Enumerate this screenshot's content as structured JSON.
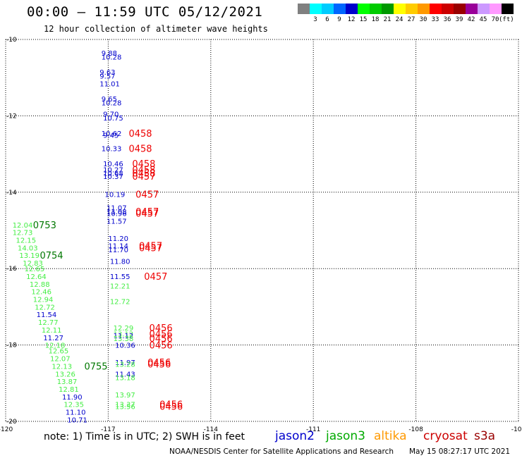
{
  "header": {
    "title": "00:00 – 11:59 UTC 05/12/2021",
    "subtitle": "12 hour collection of altimeter wave heights"
  },
  "colorbar": {
    "unit_label": "(ft)",
    "entries": [
      {
        "label": "",
        "color": "#808080"
      },
      {
        "label": "3",
        "color": "#00ffff"
      },
      {
        "label": "6",
        "color": "#00ccff"
      },
      {
        "label": "9",
        "color": "#0066ff"
      },
      {
        "label": "12",
        "color": "#0000cc"
      },
      {
        "label": "15",
        "color": "#00ff00"
      },
      {
        "label": "18",
        "color": "#00cc00"
      },
      {
        "label": "21",
        "color": "#009900"
      },
      {
        "label": "24",
        "color": "#ffff00"
      },
      {
        "label": "27",
        "color": "#ffcc00"
      },
      {
        "label": "30",
        "color": "#ff9900"
      },
      {
        "label": "33",
        "color": "#ff0000"
      },
      {
        "label": "36",
        "color": "#cc0000"
      },
      {
        "label": "39",
        "color": "#990000"
      },
      {
        "label": "42",
        "color": "#990099"
      },
      {
        "label": "45",
        "color": "#cc99ff"
      },
      {
        "label": "70",
        "color": "#ff99ff"
      },
      {
        "label": "",
        "color": "#000000"
      }
    ]
  },
  "footer": {
    "note": "note: 1) Time is in UTC; 2) SWH is in feet",
    "satellites": [
      {
        "name": "jason2",
        "color": "#0000cc"
      },
      {
        "name": "jason3",
        "color": "#00aa00"
      },
      {
        "name": "altika",
        "color": "#ff9900"
      },
      {
        "name": "cryosat",
        "color": "#cc0000"
      },
      {
        "name": "s3a",
        "color": "#990000"
      }
    ],
    "credit": "NOAA/NESDIS Center for Satellite Applications and Research",
    "timestamp": "May 15 08:27:17 UTC 2021"
  },
  "chart_data": {
    "type": "scatter",
    "xlim": [
      -120,
      -105
    ],
    "ylim": [
      -20,
      -10
    ],
    "x_ticks": [
      "-120",
      "-117",
      "-114",
      "-111",
      "-108",
      "-105"
    ],
    "y_ticks": [
      "-10",
      "-12",
      "-14",
      "-16",
      "-18",
      "-20"
    ],
    "grid": true,
    "colors": {
      "jason2": "#0000cc",
      "jason3": "#44ee44",
      "time_red": "#ee0000",
      "time_green": "#007700"
    },
    "points": [
      {
        "x": -117.2,
        "y": -10.35,
        "v": "9.88",
        "c": "jason2"
      },
      {
        "x": -117.2,
        "y": -10.45,
        "v": "10.28",
        "c": "jason2"
      },
      {
        "x": -117.25,
        "y": -10.85,
        "v": "9.63",
        "c": "jason2"
      },
      {
        "x": -117.25,
        "y": -10.95,
        "v": "9.57",
        "c": "jason2"
      },
      {
        "x": -117.25,
        "y": -11.15,
        "v": "11.01",
        "c": "jason2"
      },
      {
        "x": -117.2,
        "y": -11.55,
        "v": "9.65",
        "c": "jason2"
      },
      {
        "x": -117.2,
        "y": -11.65,
        "v": "10.28",
        "c": "jason2"
      },
      {
        "x": -117.15,
        "y": -11.95,
        "v": "9.70",
        "c": "jason2"
      },
      {
        "x": -117.15,
        "y": -12.05,
        "v": "10.75",
        "c": "jason2"
      },
      {
        "x": -117.2,
        "y": -12.45,
        "v": "10.62",
        "c": "jason2"
      },
      {
        "x": -117.15,
        "y": -12.5,
        "v": "9.45",
        "c": "jason2"
      },
      {
        "x": -117.2,
        "y": -12.85,
        "v": "10.33",
        "c": "jason2"
      },
      {
        "x": -117.15,
        "y": -13.25,
        "v": "10.46",
        "c": "jason2"
      },
      {
        "x": -117.15,
        "y": -13.4,
        "v": "10.27",
        "c": "jason2"
      },
      {
        "x": -117.15,
        "y": -13.5,
        "v": "10.68",
        "c": "jason2"
      },
      {
        "x": -117.15,
        "y": -13.58,
        "v": "10.37",
        "c": "jason2"
      },
      {
        "x": -117.1,
        "y": -14.05,
        "v": "10.19",
        "c": "jason2"
      },
      {
        "x": -117.05,
        "y": -14.4,
        "v": "11.07",
        "c": "jason2"
      },
      {
        "x": -117.05,
        "y": -14.5,
        "v": "11.08",
        "c": "jason2"
      },
      {
        "x": -117.05,
        "y": -14.55,
        "v": "10.96",
        "c": "jason2"
      },
      {
        "x": -117.05,
        "y": -14.75,
        "v": "11.57",
        "c": "jason2"
      },
      {
        "x": -117.0,
        "y": -15.2,
        "v": "11.20",
        "c": "jason2"
      },
      {
        "x": -117.0,
        "y": -15.4,
        "v": "11.14",
        "c": "jason2"
      },
      {
        "x": -117.0,
        "y": -15.5,
        "v": "11.70",
        "c": "jason2"
      },
      {
        "x": -116.95,
        "y": -15.8,
        "v": "11.80",
        "c": "jason2"
      },
      {
        "x": -116.95,
        "y": -16.2,
        "v": "11.55",
        "c": "jason2"
      },
      {
        "x": -116.95,
        "y": -16.45,
        "v": "12.21",
        "c": "jason3"
      },
      {
        "x": -116.95,
        "y": -16.85,
        "v": "12.72",
        "c": "jason3"
      },
      {
        "x": -116.85,
        "y": -17.55,
        "v": "12.29",
        "c": "jason3"
      },
      {
        "x": -116.85,
        "y": -17.7,
        "v": "13.12",
        "c": "jason3"
      },
      {
        "x": -116.85,
        "y": -17.75,
        "v": "11.12",
        "c": "jason2"
      },
      {
        "x": -116.85,
        "y": -17.82,
        "v": "13.38",
        "c": "jason3"
      },
      {
        "x": -116.8,
        "y": -18.0,
        "v": "10.36",
        "c": "jason2"
      },
      {
        "x": -116.8,
        "y": -18.45,
        "v": "11.97",
        "c": "jason2"
      },
      {
        "x": -116.8,
        "y": -18.5,
        "v": "13.28",
        "c": "jason3"
      },
      {
        "x": -116.8,
        "y": -18.75,
        "v": "11.43",
        "c": "jason2"
      },
      {
        "x": -116.8,
        "y": -18.85,
        "v": "13.18",
        "c": "jason3"
      },
      {
        "x": -116.8,
        "y": -19.3,
        "v": "13.97",
        "c": "jason3"
      },
      {
        "x": -116.8,
        "y": -19.55,
        "v": "13.37",
        "c": "jason3"
      },
      {
        "x": -116.8,
        "y": -19.6,
        "v": "13.56",
        "c": "jason3"
      },
      {
        "x": -119.8,
        "y": -14.85,
        "v": "12.04",
        "c": "jason3"
      },
      {
        "x": -119.8,
        "y": -15.05,
        "v": "12.73",
        "c": "jason3"
      },
      {
        "x": -119.7,
        "y": -15.25,
        "v": "12.15",
        "c": "jason3"
      },
      {
        "x": -119.65,
        "y": -15.45,
        "v": "14.03",
        "c": "jason3"
      },
      {
        "x": -119.6,
        "y": -15.65,
        "v": "13.19",
        "c": "jason3"
      },
      {
        "x": -119.5,
        "y": -15.85,
        "v": "12.83",
        "c": "jason3"
      },
      {
        "x": -119.45,
        "y": -16.0,
        "v": "12.65",
        "c": "jason3"
      },
      {
        "x": -119.4,
        "y": -16.2,
        "v": "12.64",
        "c": "jason3"
      },
      {
        "x": -119.3,
        "y": -16.4,
        "v": "12.88",
        "c": "jason3"
      },
      {
        "x": -119.25,
        "y": -16.6,
        "v": "12.46",
        "c": "jason3"
      },
      {
        "x": -119.2,
        "y": -16.8,
        "v": "12.94",
        "c": "jason3"
      },
      {
        "x": -119.15,
        "y": -17.0,
        "v": "12.72",
        "c": "jason3"
      },
      {
        "x": -119.1,
        "y": -17.2,
        "v": "11.54",
        "c": "jason2"
      },
      {
        "x": -119.05,
        "y": -17.4,
        "v": "12.77",
        "c": "jason3"
      },
      {
        "x": -118.95,
        "y": -17.6,
        "v": "12.11",
        "c": "jason3"
      },
      {
        "x": -118.9,
        "y": -17.8,
        "v": "11.27",
        "c": "jason2"
      },
      {
        "x": -118.85,
        "y": -18.0,
        "v": "12.18",
        "c": "jason3"
      },
      {
        "x": -118.75,
        "y": -18.15,
        "v": "12.65",
        "c": "jason3"
      },
      {
        "x": -118.7,
        "y": -18.35,
        "v": "12.07",
        "c": "jason3"
      },
      {
        "x": -118.65,
        "y": -18.55,
        "v": "12.13",
        "c": "jason3"
      },
      {
        "x": -118.55,
        "y": -18.75,
        "v": "13.26",
        "c": "jason3"
      },
      {
        "x": -118.5,
        "y": -18.95,
        "v": "13.87",
        "c": "jason3"
      },
      {
        "x": -118.45,
        "y": -19.15,
        "v": "12.81",
        "c": "jason3"
      },
      {
        "x": -118.35,
        "y": -19.35,
        "v": "11.90",
        "c": "jason2"
      },
      {
        "x": -118.3,
        "y": -19.55,
        "v": "12.35",
        "c": "jason3"
      },
      {
        "x": -118.25,
        "y": -19.75,
        "v": "11.10",
        "c": "jason2"
      },
      {
        "x": -118.2,
        "y": -19.95,
        "v": "10.71",
        "c": "jason2"
      }
    ],
    "time_labels": [
      {
        "x": -116.4,
        "y": -12.45,
        "t": "0458",
        "c": "time_red"
      },
      {
        "x": -116.4,
        "y": -12.85,
        "t": "0458",
        "c": "time_red"
      },
      {
        "x": -116.3,
        "y": -13.25,
        "t": "0458",
        "c": "time_red"
      },
      {
        "x": -116.3,
        "y": -13.4,
        "t": "0458",
        "c": "time_red"
      },
      {
        "x": -116.3,
        "y": -13.5,
        "t": "0458",
        "c": "time_red"
      },
      {
        "x": -116.3,
        "y": -13.58,
        "t": "0457",
        "c": "time_red"
      },
      {
        "x": -116.2,
        "y": -14.05,
        "t": "0457",
        "c": "time_red"
      },
      {
        "x": -116.2,
        "y": -14.5,
        "t": "0457",
        "c": "time_red"
      },
      {
        "x": -116.2,
        "y": -14.55,
        "t": "0457",
        "c": "time_red"
      },
      {
        "x": -116.1,
        "y": -15.4,
        "t": "0457",
        "c": "time_red"
      },
      {
        "x": -116.1,
        "y": -15.45,
        "t": "0457",
        "c": "time_red"
      },
      {
        "x": -115.95,
        "y": -16.2,
        "t": "0457",
        "c": "time_red"
      },
      {
        "x": -115.8,
        "y": -17.55,
        "t": "0456",
        "c": "time_red"
      },
      {
        "x": -115.8,
        "y": -17.7,
        "t": "0456",
        "c": "time_red"
      },
      {
        "x": -115.8,
        "y": -17.82,
        "t": "0456",
        "c": "time_red"
      },
      {
        "x": -115.8,
        "y": -18.0,
        "t": "0456",
        "c": "time_red"
      },
      {
        "x": -115.85,
        "y": -18.45,
        "t": "0456",
        "c": "time_red"
      },
      {
        "x": -115.85,
        "y": -18.5,
        "t": "0456",
        "c": "time_red"
      },
      {
        "x": -115.5,
        "y": -19.55,
        "t": "0456",
        "c": "time_red"
      },
      {
        "x": -115.5,
        "y": -19.6,
        "t": "0456",
        "c": "time_red"
      },
      {
        "x": -119.2,
        "y": -14.85,
        "t": "0753",
        "c": "time_green"
      },
      {
        "x": -119.0,
        "y": -15.65,
        "t": "0754",
        "c": "time_green"
      },
      {
        "x": -117.7,
        "y": -18.55,
        "t": "0755",
        "c": "time_green"
      }
    ]
  }
}
